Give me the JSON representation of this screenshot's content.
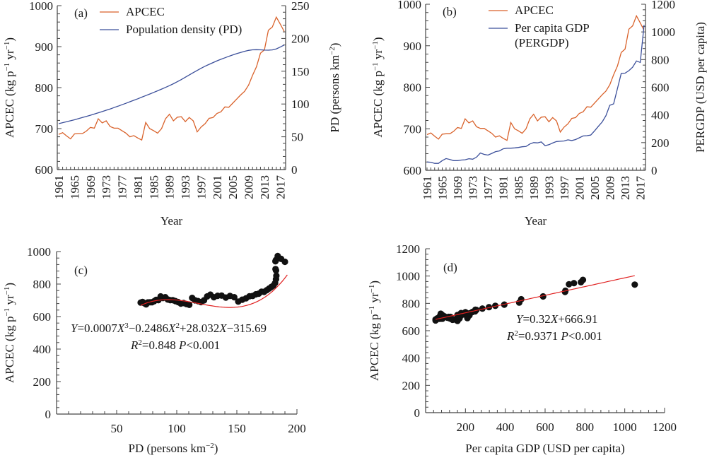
{
  "colors": {
    "apcec": "#D9622B",
    "secondary": "#3B4F9A",
    "fit": "#E02020",
    "dot": "#111111"
  },
  "chart_data": [
    {
      "id": "a",
      "type": "line",
      "panel_label": "(a)",
      "xlabel": "Year",
      "ylabel": "APCEC (kg p⁻¹ yr⁻¹)",
      "y2label": "PD (persons km⁻²)",
      "ylim": [
        600,
        1000
      ],
      "y2lim": [
        0,
        250
      ],
      "yticks": [
        "600",
        "700",
        "800",
        "900",
        "1000"
      ],
      "y2ticks": [
        "0",
        "50",
        "100",
        "150",
        "200",
        "250"
      ],
      "xticks": [
        "1961",
        "1965",
        "1969",
        "1973",
        "1977",
        "1981",
        "1985",
        "1989",
        "1993",
        "1997",
        "2001",
        "2005",
        "2009",
        "2013",
        "2017"
      ],
      "x": [
        1961,
        1962,
        1963,
        1964,
        1965,
        1966,
        1967,
        1968,
        1969,
        1970,
        1971,
        1972,
        1973,
        1974,
        1975,
        1976,
        1977,
        1978,
        1979,
        1980,
        1981,
        1982,
        1983,
        1984,
        1985,
        1986,
        1987,
        1988,
        1989,
        1990,
        1991,
        1992,
        1993,
        1994,
        1995,
        1996,
        1997,
        1998,
        1999,
        2000,
        2001,
        2002,
        2003,
        2004,
        2005,
        2006,
        2007,
        2008,
        2009,
        2010,
        2011,
        2012,
        2013,
        2014,
        2015,
        2016,
        2017,
        2018
      ],
      "series": [
        {
          "name": "APCEC",
          "axis": "left",
          "values": [
            686,
            690,
            682,
            675,
            687,
            688,
            688,
            694,
            703,
            701,
            724,
            714,
            719,
            705,
            701,
            701,
            695,
            689,
            680,
            683,
            677,
            672,
            715,
            700,
            695,
            689,
            700,
            724,
            735,
            719,
            728,
            729,
            717,
            727,
            719,
            692,
            704,
            712,
            725,
            727,
            737,
            741,
            753,
            752,
            762,
            772,
            782,
            791,
            806,
            830,
            851,
            884,
            892,
            940,
            948,
            972,
            955,
            937
          ]
        },
        {
          "name": "Population density (PD)",
          "axis": "right",
          "values": [
            70,
            71.5,
            73,
            74.5,
            76,
            77.7,
            79.4,
            81.1,
            82.9,
            84.7,
            86.6,
            88.5,
            90.5,
            92.5,
            94.6,
            96.7,
            98.9,
            101.1,
            103.4,
            105.7,
            108,
            110.4,
            112.8,
            115.2,
            117.7,
            120.2,
            122.7,
            125.3,
            128,
            130.9,
            134,
            137.3,
            140.8,
            144.3,
            147.8,
            151.2,
            154.5,
            157.6,
            160.5,
            163.2,
            165.8,
            168.2,
            170.5,
            172.7,
            174.8,
            176.8,
            178.7,
            180.4,
            181.8,
            182.6,
            182.9,
            182.6,
            182.2,
            182.1,
            182.5,
            184,
            186.8,
            190
          ]
        }
      ]
    },
    {
      "id": "b",
      "type": "line",
      "panel_label": "(b)",
      "xlabel": "Year",
      "ylabel": "APCEC (kg p⁻¹ yr⁻¹)",
      "y2label": "PERGDP (USD per capita)",
      "ylim": [
        600,
        1000
      ],
      "y2lim": [
        0,
        1200
      ],
      "yticks": [
        "600",
        "700",
        "800",
        "900",
        "1000"
      ],
      "y2ticks": [
        "0",
        "200",
        "400",
        "600",
        "800",
        "1000",
        "1200"
      ],
      "xticks": [
        "1961",
        "1965",
        "1969",
        "1973",
        "1977",
        "1981",
        "1985",
        "1989",
        "1993",
        "1997",
        "2001",
        "2005",
        "2009",
        "2013",
        "2017"
      ],
      "x": [
        1961,
        1962,
        1963,
        1964,
        1965,
        1966,
        1967,
        1968,
        1969,
        1970,
        1971,
        1972,
        1973,
        1974,
        1975,
        1976,
        1977,
        1978,
        1979,
        1980,
        1981,
        1982,
        1983,
        1984,
        1985,
        1986,
        1987,
        1988,
        1989,
        1990,
        1991,
        1992,
        1993,
        1994,
        1995,
        1996,
        1997,
        1998,
        1999,
        2000,
        2001,
        2002,
        2003,
        2004,
        2005,
        2006,
        2007,
        2008,
        2009,
        2010,
        2011,
        2012,
        2013,
        2014,
        2015,
        2016,
        2017,
        2018
      ],
      "series": [
        {
          "name": "APCEC",
          "axis": "left",
          "values": [
            686,
            690,
            682,
            675,
            687,
            688,
            688,
            694,
            703,
            701,
            724,
            714,
            719,
            705,
            701,
            701,
            695,
            689,
            680,
            683,
            677,
            672,
            715,
            700,
            695,
            689,
            700,
            724,
            735,
            719,
            728,
            729,
            717,
            727,
            719,
            692,
            704,
            712,
            725,
            727,
            737,
            741,
            753,
            752,
            762,
            772,
            782,
            791,
            806,
            830,
            851,
            884,
            892,
            940,
            948,
            972,
            955,
            937
          ]
        },
        {
          "name": "Per capita GDP (PERGDP)",
          "axis": "right",
          "values": [
            60,
            58,
            50,
            50,
            70,
            85,
            78,
            70,
            70,
            74,
            76,
            84,
            80,
            95,
            125,
            115,
            110,
            122,
            135,
            140,
            155,
            160,
            160,
            162,
            165,
            170,
            172,
            190,
            200,
            198,
            205,
            178,
            185,
            197,
            208,
            210,
            212,
            220,
            215,
            222,
            235,
            248,
            250,
            255,
            285,
            318,
            350,
            395,
            470,
            480,
            590,
            700,
            702,
            720,
            745,
            790,
            780,
            1050
          ]
        }
      ]
    },
    {
      "id": "c",
      "type": "scatter",
      "panel_label": "(c)",
      "xlabel": "PD (persons km⁻²)",
      "ylabel": "APCEC (kg p⁻¹ yr⁻¹)",
      "xlim": [
        0,
        200
      ],
      "ylim": [
        0,
        1000
      ],
      "xticks": [
        "50",
        "100",
        "150",
        "200"
      ],
      "yticks": [
        "0",
        "200",
        "400",
        "600",
        "800",
        "1000"
      ],
      "fit": {
        "type": "cubic",
        "coef": [
          0.0007,
          -0.2486,
          28.032,
          -315.69
        ],
        "range": [
          70,
          192
        ]
      },
      "equation_text": {
        "Y": "Y",
        "expr": "=0.0007X³−0.2486X²+28.032X−315.69",
        "r2": "R²=0.848 P<0.001"
      },
      "source": "pairs PD (x) with APCEC (y) from panel a series, 1961–2018"
    },
    {
      "id": "d",
      "type": "scatter",
      "panel_label": "(d)",
      "xlabel": "Per capita GDP (USD per capita)",
      "ylabel": "APCEC (kg p⁻¹ yr⁻¹)",
      "xlim": [
        0,
        1200
      ],
      "ylim": [
        0,
        1200
      ],
      "xticks": [
        "200",
        "400",
        "600",
        "800",
        "1000",
        "1200"
      ],
      "yticks": [
        "0",
        "200",
        "400",
        "600",
        "800",
        "1000",
        "1200"
      ],
      "fit": {
        "type": "linear",
        "coef": [
          0.32,
          666.91
        ],
        "range": [
          50,
          1050
        ]
      },
      "equation_text": {
        "expr": "Y=0.32X+666.91",
        "r2": "R²=0.9371 P<0.001"
      },
      "source": "pairs PERGDP (x) with APCEC (y) from panel b series, 1961–2018"
    }
  ]
}
